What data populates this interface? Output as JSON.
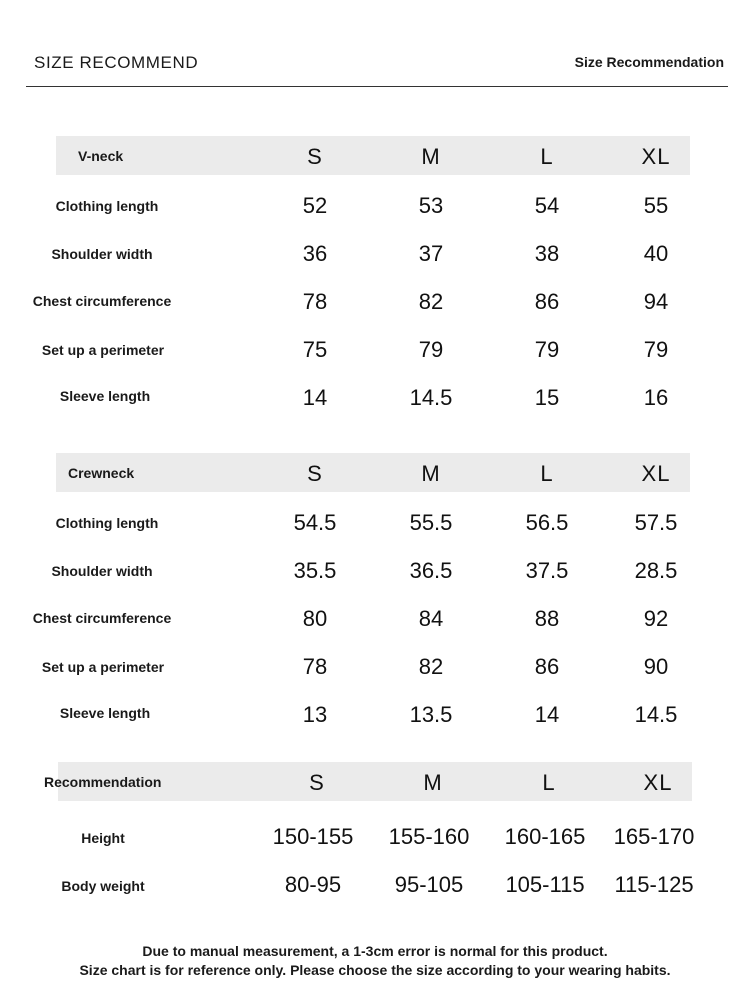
{
  "header": {
    "title_left": "SIZE RECOMMEND",
    "title_right": "Size Recommendation"
  },
  "sizes": [
    "S",
    "M",
    "L",
    "XL"
  ],
  "vneck": {
    "label": "V-neck",
    "rows": [
      {
        "label": "Clothing length",
        "values": [
          "52",
          "53",
          "54",
          "55"
        ]
      },
      {
        "label": "Shoulder width",
        "values": [
          "36",
          "37",
          "38",
          "40"
        ]
      },
      {
        "label": "Chest circumference",
        "values": [
          "78",
          "82",
          "86",
          "94"
        ]
      },
      {
        "label": "Set up a perimeter",
        "values": [
          "75",
          "79",
          "79",
          "79"
        ]
      },
      {
        "label": "Sleeve length",
        "values": [
          "14",
          "14.5",
          "15",
          "16"
        ]
      }
    ]
  },
  "crewneck": {
    "label": "Crewneck",
    "rows": [
      {
        "label": "Clothing length",
        "values": [
          "54.5",
          "55.5",
          "56.5",
          "57.5"
        ]
      },
      {
        "label": "Shoulder width",
        "values": [
          "35.5",
          "36.5",
          "37.5",
          "28.5"
        ]
      },
      {
        "label": "Chest circumference",
        "values": [
          "80",
          "84",
          "88",
          "92"
        ]
      },
      {
        "label": "Set up a perimeter",
        "values": [
          "78",
          "82",
          "86",
          "90"
        ]
      },
      {
        "label": "Sleeve length",
        "values": [
          "13",
          "13.5",
          "14",
          "14.5"
        ]
      }
    ]
  },
  "recommendation": {
    "label": "Recommendation",
    "rows": [
      {
        "label": "Height",
        "values": [
          "150-155",
          "155-160",
          "160-165",
          "165-170"
        ]
      },
      {
        "label": "Body weight",
        "values": [
          "80-95",
          "95-105",
          "105-115",
          "115-125"
        ]
      }
    ]
  },
  "notes": {
    "line1": "Due to manual measurement, a 1-3cm error is normal for this product.",
    "line2": "Size chart is for reference only. Please choose the size according to your wearing habits."
  }
}
